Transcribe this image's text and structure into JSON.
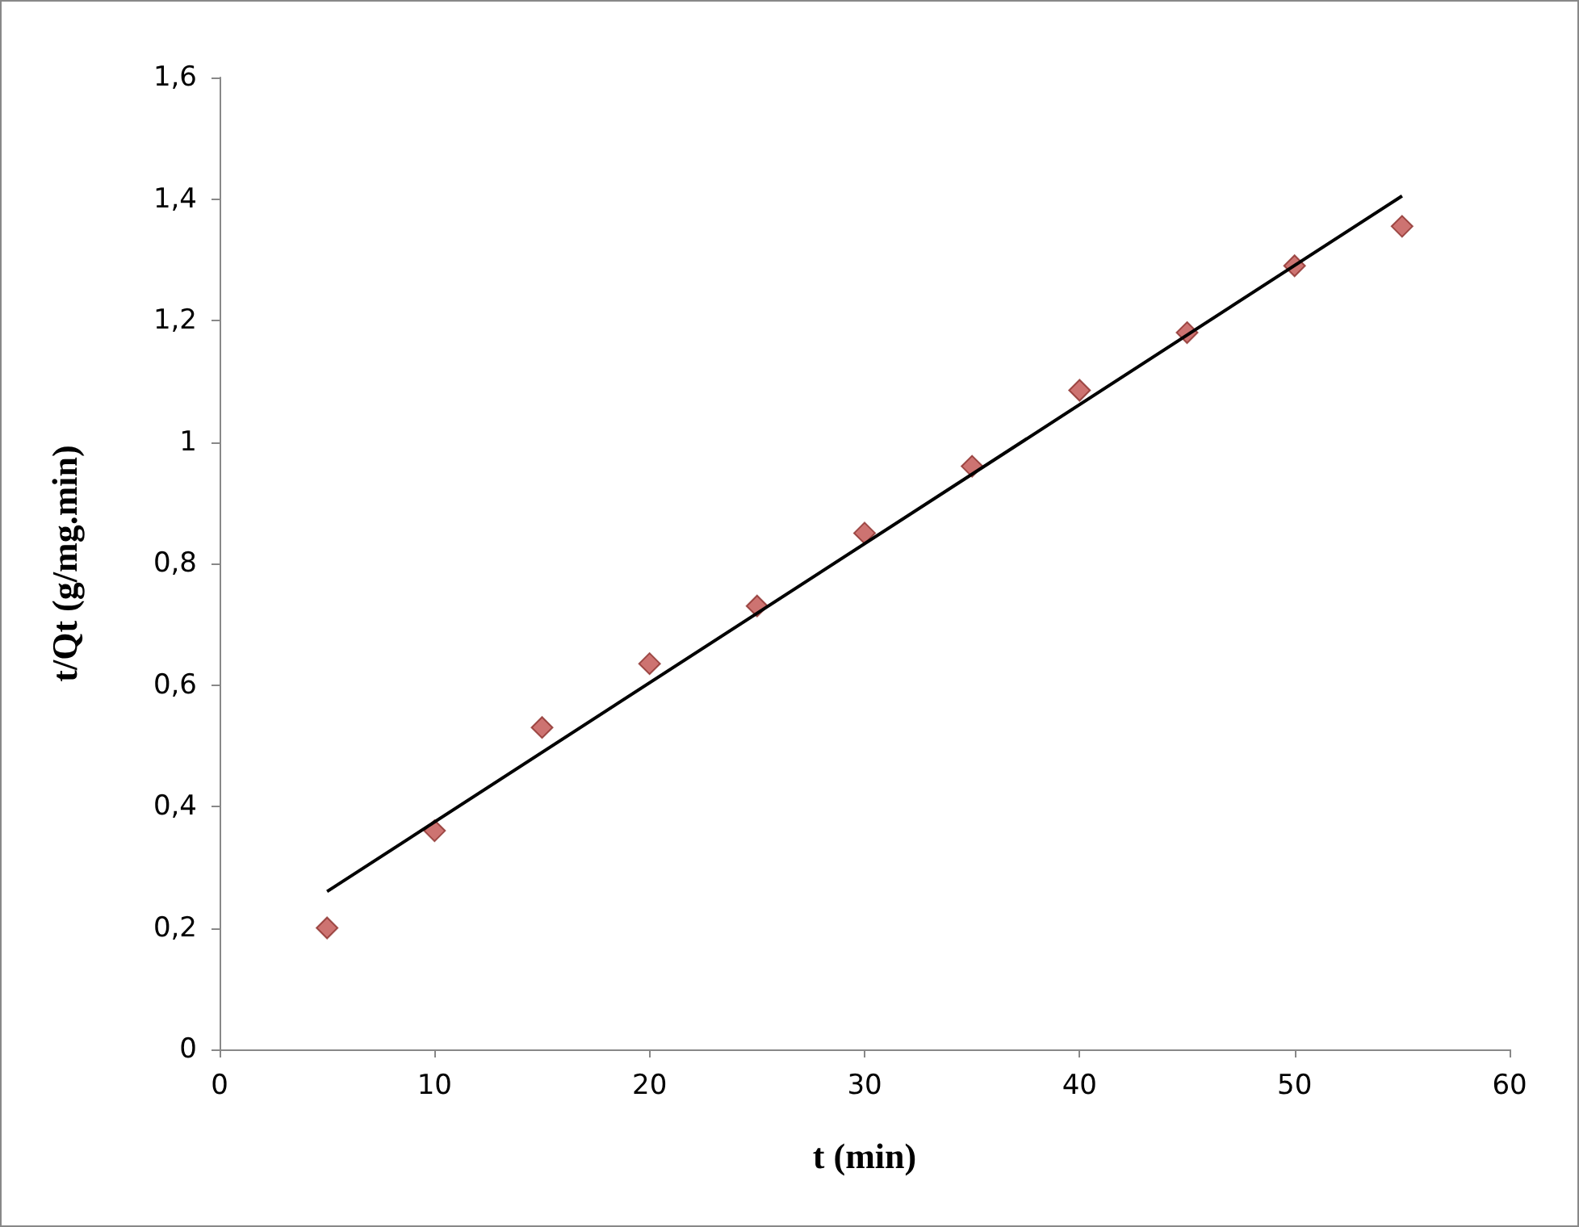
{
  "chart_data": {
    "type": "scatter",
    "xlabel": "t (min)",
    "ylabel": "t/Qt (g/mg.min)",
    "x": [
      5,
      10,
      15,
      20,
      25,
      30,
      35,
      40,
      45,
      50,
      55
    ],
    "series": [
      {
        "color": "#c0504d",
        "marker": "diamond",
        "values": [
          0.2,
          0.36,
          0.53,
          0.635,
          0.73,
          0.85,
          0.96,
          1.085,
          1.18,
          1.29,
          1.355
        ]
      },
      {
        "type": "line",
        "color": "#000000",
        "marker": "none",
        "x": [
          5,
          55
        ],
        "values": [
          0.26,
          1.405
        ]
      }
    ],
    "xlim": [
      0,
      60
    ],
    "xticks": [
      0,
      10,
      20,
      30,
      40,
      50,
      60
    ],
    "ylim": [
      0,
      1.6
    ],
    "yticks": [
      0,
      {
        "value": 0.2,
        "label": "0,2"
      },
      {
        "value": 0.4,
        "label": "0,4"
      },
      {
        "value": 0.6,
        "label": "0,6"
      },
      {
        "value": 0.8,
        "label": "0,8"
      },
      1,
      {
        "value": 1.2,
        "label": "1,2"
      },
      {
        "value": 1.4,
        "label": "1,4"
      },
      {
        "value": 1.6,
        "label": "1,6"
      }
    ],
    "grid": false
  }
}
